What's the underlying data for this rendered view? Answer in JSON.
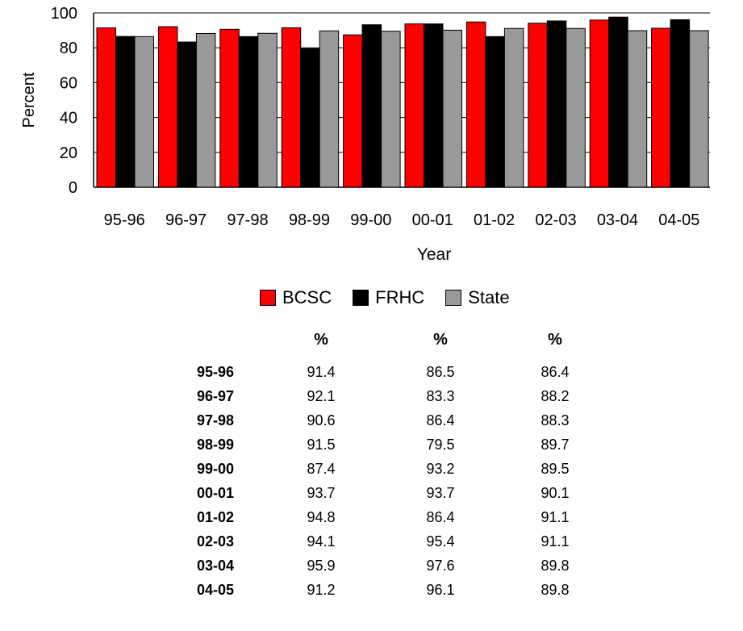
{
  "chart_data": {
    "type": "bar",
    "categories": [
      "95-96",
      "96-97",
      "97-98",
      "98-99",
      "99-00",
      "00-01",
      "01-02",
      "02-03",
      "03-04",
      "04-05"
    ],
    "series": [
      {
        "name": "BCSC",
        "color": "#ff0000",
        "values": [
          91.4,
          92.1,
          90.6,
          91.5,
          87.4,
          93.7,
          94.8,
          94.1,
          95.9,
          91.2
        ]
      },
      {
        "name": "FRHC",
        "color": "#000000",
        "values": [
          86.5,
          83.3,
          86.4,
          79.5,
          93.2,
          93.7,
          86.4,
          95.4,
          97.6,
          96.1
        ]
      },
      {
        "name": "State",
        "color": "#999999",
        "values": [
          86.4,
          88.2,
          88.3,
          89.7,
          89.5,
          90.1,
          91.1,
          91.1,
          89.8,
          89.8
        ]
      }
    ],
    "xlabel": "Year",
    "ylabel": "Percent",
    "ylim": [
      0,
      100
    ],
    "yticks": [
      "0",
      "20",
      "40",
      "60",
      "80",
      "100"
    ],
    "grid": "horizontal",
    "legend": "bottom"
  },
  "table": {
    "headers": [
      "",
      "%",
      "%",
      "%"
    ],
    "rows": [
      [
        "95-96",
        "91.4",
        "86.5",
        "86.4"
      ],
      [
        "96-97",
        "92.1",
        "83.3",
        "88.2"
      ],
      [
        "97-98",
        "90.6",
        "86.4",
        "88.3"
      ],
      [
        "98-99",
        "91.5",
        "79.5",
        "89.7"
      ],
      [
        "99-00",
        "87.4",
        "93.2",
        "89.5"
      ],
      [
        "00-01",
        "93.7",
        "93.7",
        "90.1"
      ],
      [
        "01-02",
        "94.8",
        "86.4",
        "91.1"
      ],
      [
        "02-03",
        "94.1",
        "95.4",
        "91.1"
      ],
      [
        "03-04",
        "95.9",
        "97.6",
        "89.8"
      ],
      [
        "04-05",
        "91.2",
        "96.1",
        "89.8"
      ]
    ]
  }
}
